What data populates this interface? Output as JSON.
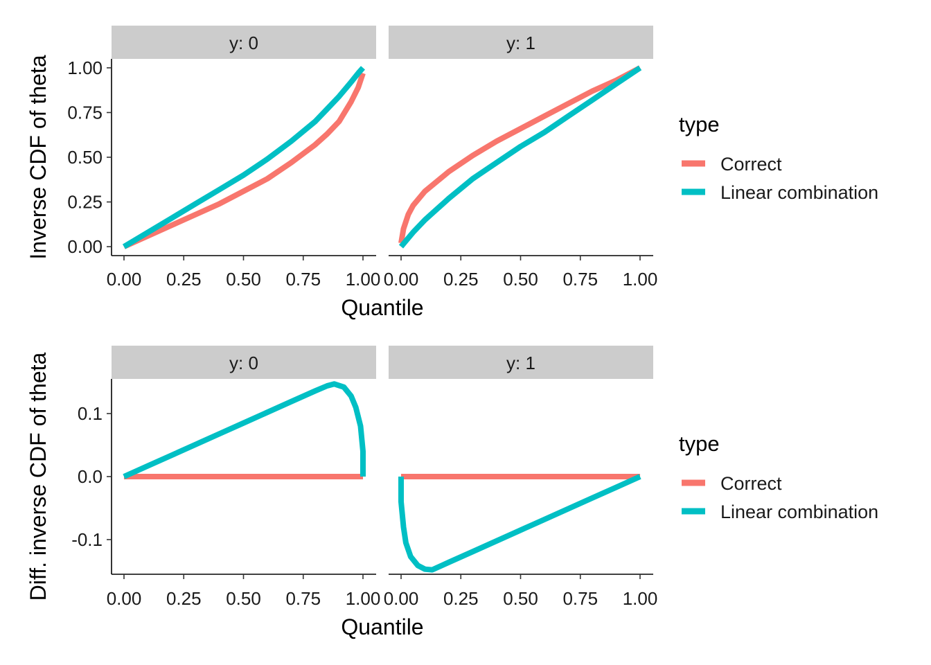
{
  "chart_data": [
    {
      "type": "line",
      "facet_label": "y",
      "xlabel": "Quantile",
      "ylabel": "Inverse CDF of theta",
      "xlim": [
        0,
        1
      ],
      "ylim": [
        -0.05,
        1.05
      ],
      "x_ticks": [
        "0.00",
        "0.25",
        "0.50",
        "0.75",
        "1.00"
      ],
      "y_ticks": [
        "0.00",
        "0.25",
        "0.50",
        "0.75",
        "1.00"
      ],
      "legend": {
        "title": "type",
        "position": "right",
        "entries": [
          "Correct",
          "Linear combination"
        ]
      },
      "series_colors": {
        "Correct": "#F8766D",
        "Linear combination": "#00BFC4"
      },
      "panels": [
        {
          "strip": "y: 0",
          "series": [
            {
              "name": "Correct",
              "x": [
                0,
                0.1,
                0.2,
                0.3,
                0.4,
                0.5,
                0.6,
                0.7,
                0.8,
                0.85,
                0.9,
                0.95,
                0.98,
                1.0
              ],
              "y": [
                0,
                0.06,
                0.12,
                0.18,
                0.24,
                0.31,
                0.38,
                0.47,
                0.57,
                0.63,
                0.7,
                0.81,
                0.89,
                0.97
              ]
            },
            {
              "name": "Linear combination",
              "x": [
                0,
                0.1,
                0.2,
                0.3,
                0.4,
                0.5,
                0.6,
                0.7,
                0.8,
                0.85,
                0.9,
                0.95,
                0.98,
                1.0
              ],
              "y": [
                0,
                0.08,
                0.16,
                0.24,
                0.32,
                0.4,
                0.49,
                0.59,
                0.7,
                0.77,
                0.84,
                0.92,
                0.97,
                1.0
              ]
            }
          ]
        },
        {
          "strip": "y: 1",
          "series": [
            {
              "name": "Correct",
              "x": [
                0,
                0.01,
                0.03,
                0.05,
                0.1,
                0.2,
                0.3,
                0.4,
                0.5,
                0.6,
                0.7,
                0.8,
                0.9,
                1.0
              ],
              "y": [
                0.02,
                0.1,
                0.18,
                0.23,
                0.31,
                0.42,
                0.51,
                0.59,
                0.66,
                0.73,
                0.8,
                0.87,
                0.93,
                1.0
              ]
            },
            {
              "name": "Linear combination",
              "x": [
                0,
                0.05,
                0.1,
                0.2,
                0.3,
                0.4,
                0.5,
                0.6,
                0.7,
                0.8,
                0.9,
                1.0
              ],
              "y": [
                0,
                0.08,
                0.15,
                0.27,
                0.38,
                0.47,
                0.56,
                0.64,
                0.73,
                0.82,
                0.91,
                1.0
              ]
            }
          ]
        }
      ]
    },
    {
      "type": "line",
      "facet_label": "y",
      "xlabel": "Quantile",
      "ylabel": "Diff. inverse CDF of theta",
      "xlim": [
        0,
        1
      ],
      "ylim": [
        -0.155,
        0.155
      ],
      "x_ticks": [
        "0.00",
        "0.25",
        "0.50",
        "0.75",
        "1.00"
      ],
      "y_ticks": [
        "-0.1",
        "0.0",
        "0.1"
      ],
      "y_tick_values": [
        -0.1,
        0.0,
        0.1
      ],
      "legend": {
        "title": "type",
        "position": "right",
        "entries": [
          "Correct",
          "Linear combination"
        ]
      },
      "series_colors": {
        "Correct": "#F8766D",
        "Linear combination": "#00BFC4"
      },
      "panels": [
        {
          "strip": "y: 0",
          "series": [
            {
              "name": "Correct",
              "x": [
                0,
                1.0
              ],
              "y": [
                0,
                0
              ]
            },
            {
              "name": "Linear combination",
              "x": [
                0,
                0.1,
                0.2,
                0.3,
                0.4,
                0.5,
                0.6,
                0.7,
                0.8,
                0.85,
                0.88,
                0.92,
                0.95,
                0.97,
                0.99,
                1.0,
                1.0
              ],
              "y": [
                0,
                0.017,
                0.034,
                0.051,
                0.068,
                0.085,
                0.102,
                0.119,
                0.136,
                0.144,
                0.147,
                0.142,
                0.128,
                0.11,
                0.08,
                0.04,
                0
              ]
            }
          ]
        },
        {
          "strip": "y: 1",
          "series": [
            {
              "name": "Correct",
              "x": [
                0,
                1.0
              ],
              "y": [
                0,
                0
              ]
            },
            {
              "name": "Linear combination",
              "x": [
                0,
                0.0,
                0.01,
                0.02,
                0.04,
                0.07,
                0.1,
                0.13,
                0.2,
                0.3,
                0.4,
                0.5,
                0.6,
                0.7,
                0.8,
                0.9,
                1.0
              ],
              "y": [
                0,
                -0.04,
                -0.08,
                -0.105,
                -0.127,
                -0.141,
                -0.147,
                -0.148,
                -0.136,
                -0.119,
                -0.102,
                -0.085,
                -0.068,
                -0.051,
                -0.034,
                -0.017,
                0
              ]
            }
          ]
        }
      ]
    }
  ]
}
